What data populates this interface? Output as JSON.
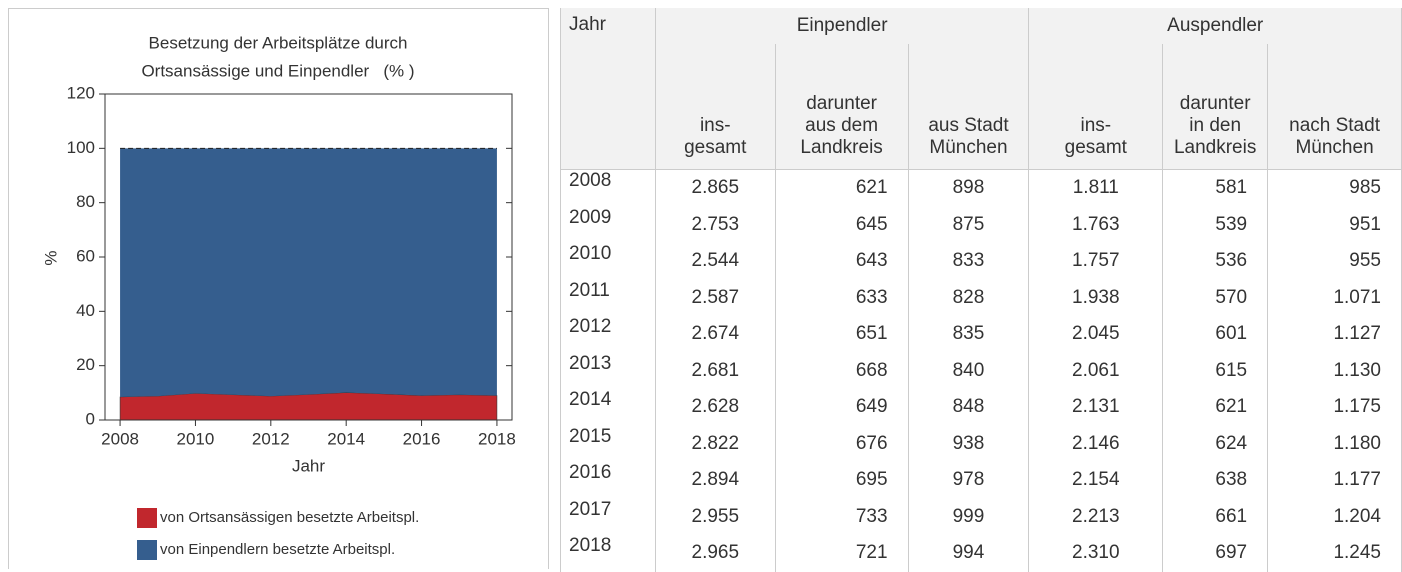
{
  "chart_data": {
    "type": "stacked-area",
    "title": [
      "Besetzung der Arbeitsplätze durch",
      "Ortsansässige und Einpendler   (% )"
    ],
    "x_label": "Jahr",
    "y_label": "%",
    "x": [
      2008,
      2009,
      2010,
      2011,
      2012,
      2013,
      2014,
      2015,
      2016,
      2017,
      2018
    ],
    "xlim": [
      2007.6,
      2018.4
    ],
    "xticks": [
      2008,
      2010,
      2012,
      2014,
      2016,
      2018
    ],
    "ylim": [
      0,
      120
    ],
    "yticks": [
      0,
      20,
      40,
      60,
      80,
      100,
      120
    ],
    "series": [
      {
        "name": "von Ortsansässigen besetzte Arbeitspl.",
        "color": "#c1272d",
        "values": [
          8.5,
          8.8,
          9.8,
          9.3,
          8.8,
          9.4,
          10.1,
          9.6,
          9.0,
          9.3,
          9.0
        ]
      },
      {
        "name": "von Einpendlern besetzte Arbeitspl.",
        "color": "#355e8e",
        "values": [
          91.5,
          91.2,
          90.2,
          90.7,
          91.2,
          90.6,
          89.9,
          90.4,
          91.0,
          90.7,
          91.0
        ]
      }
    ]
  },
  "table": {
    "year_header": "Jahr",
    "groups": [
      "Einpendler",
      "Auspendler"
    ],
    "columns": [
      [
        "ins-",
        "gesamt"
      ],
      [
        "darunter",
        "aus dem",
        "Landkreis"
      ],
      [
        "aus Stadt",
        "München"
      ],
      [
        "ins-",
        "gesamt"
      ],
      [
        "darunter",
        "in den",
        "Landkreis"
      ],
      [
        "nach Stadt",
        "München"
      ]
    ],
    "rows": [
      [
        "2008",
        "2.865",
        "621",
        "898",
        "1.811",
        "581",
        "985"
      ],
      [
        "2009",
        "2.753",
        "645",
        "875",
        "1.763",
        "539",
        "951"
      ],
      [
        "2010",
        "2.544",
        "643",
        "833",
        "1.757",
        "536",
        "955"
      ],
      [
        "2011",
        "2.587",
        "633",
        "828",
        "1.938",
        "570",
        "1.071"
      ],
      [
        "2012",
        "2.674",
        "651",
        "835",
        "2.045",
        "601",
        "1.127"
      ],
      [
        "2013",
        "2.681",
        "668",
        "840",
        "2.061",
        "615",
        "1.130"
      ],
      [
        "2014",
        "2.628",
        "649",
        "848",
        "2.131",
        "621",
        "1.175"
      ],
      [
        "2015",
        "2.822",
        "676",
        "938",
        "2.146",
        "624",
        "1.180"
      ],
      [
        "2016",
        "2.894",
        "695",
        "978",
        "2.154",
        "638",
        "1.177"
      ],
      [
        "2017",
        "2.955",
        "733",
        "999",
        "2.213",
        "661",
        "1.204"
      ],
      [
        "2018",
        "2.965",
        "721",
        "994",
        "2.310",
        "697",
        "1.245"
      ]
    ]
  }
}
